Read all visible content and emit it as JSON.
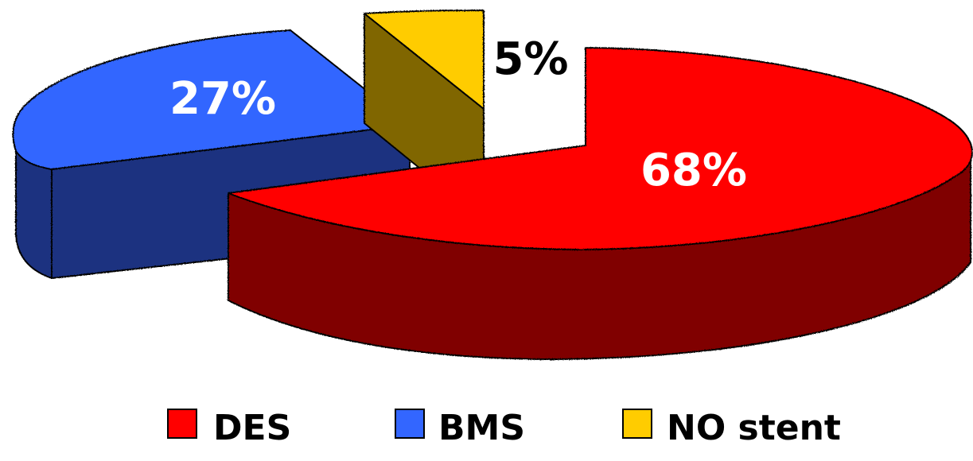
{
  "chart_data": {
    "type": "pie",
    "style": "3d-exploded",
    "slices": [
      {
        "label": "DES",
        "value": 68,
        "value_label": "68%",
        "color": "#ff0000",
        "side_color": "#800000",
        "label_color": "#ffffff"
      },
      {
        "label": "BMS",
        "value": 27,
        "value_label": "27%",
        "color": "#3366ff",
        "side_color": "#1c3380",
        "label_color": "#ffffff"
      },
      {
        "label": "NO stent",
        "value": 5,
        "value_label": "5%",
        "color": "#ffcc00",
        "side_color": "#806600",
        "label_color": "#000000"
      }
    ],
    "legend": {
      "position": "bottom",
      "entries": [
        "DES",
        "BMS",
        "NO stent"
      ]
    }
  }
}
